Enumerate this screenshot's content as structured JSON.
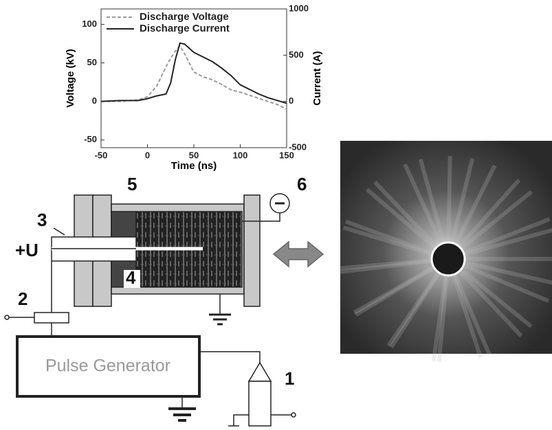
{
  "chart_data": {
    "type": "line",
    "x_label": "Time (ns)",
    "y_label": "Voltage (kV)",
    "y2_label": "Current (A)",
    "x": [
      -50,
      -40,
      -30,
      -20,
      -10,
      0,
      10,
      20,
      25,
      30,
      35,
      40,
      50,
      60,
      70,
      80,
      90,
      100,
      110,
      120,
      130,
      140,
      150
    ],
    "series": [
      {
        "name": "Discharge Voltage",
        "color": "#999999",
        "dashed": true,
        "values": [
          0,
          0,
          0,
          1,
          2,
          6,
          20,
          45,
          56,
          65,
          72,
          62,
          38,
          32,
          28,
          22,
          15,
          12,
          8,
          4,
          0,
          -4,
          -10
        ]
      },
      {
        "name": "Discharge Current",
        "color": "#222222",
        "axis": "y2",
        "values": [
          0,
          5,
          10,
          10,
          10,
          30,
          60,
          80,
          200,
          450,
          630,
          620,
          530,
          480,
          430,
          360,
          280,
          180,
          130,
          80,
          40,
          10,
          -20
        ]
      }
    ],
    "xlim": [
      -50,
      150
    ],
    "xticks": [
      -50,
      0,
      50,
      100,
      150
    ],
    "ylim": [
      -60,
      120
    ],
    "yticks": [
      -50,
      0,
      50,
      100
    ],
    "y2lim": [
      -500,
      1000
    ],
    "y2ticks": [
      -500,
      0,
      500,
      1000
    ],
    "legend": "top-left"
  },
  "diagram": {
    "labels": [
      "5",
      "6",
      "3",
      "+U",
      "4",
      "2",
      "1"
    ],
    "generator": "Pulse Generator"
  }
}
